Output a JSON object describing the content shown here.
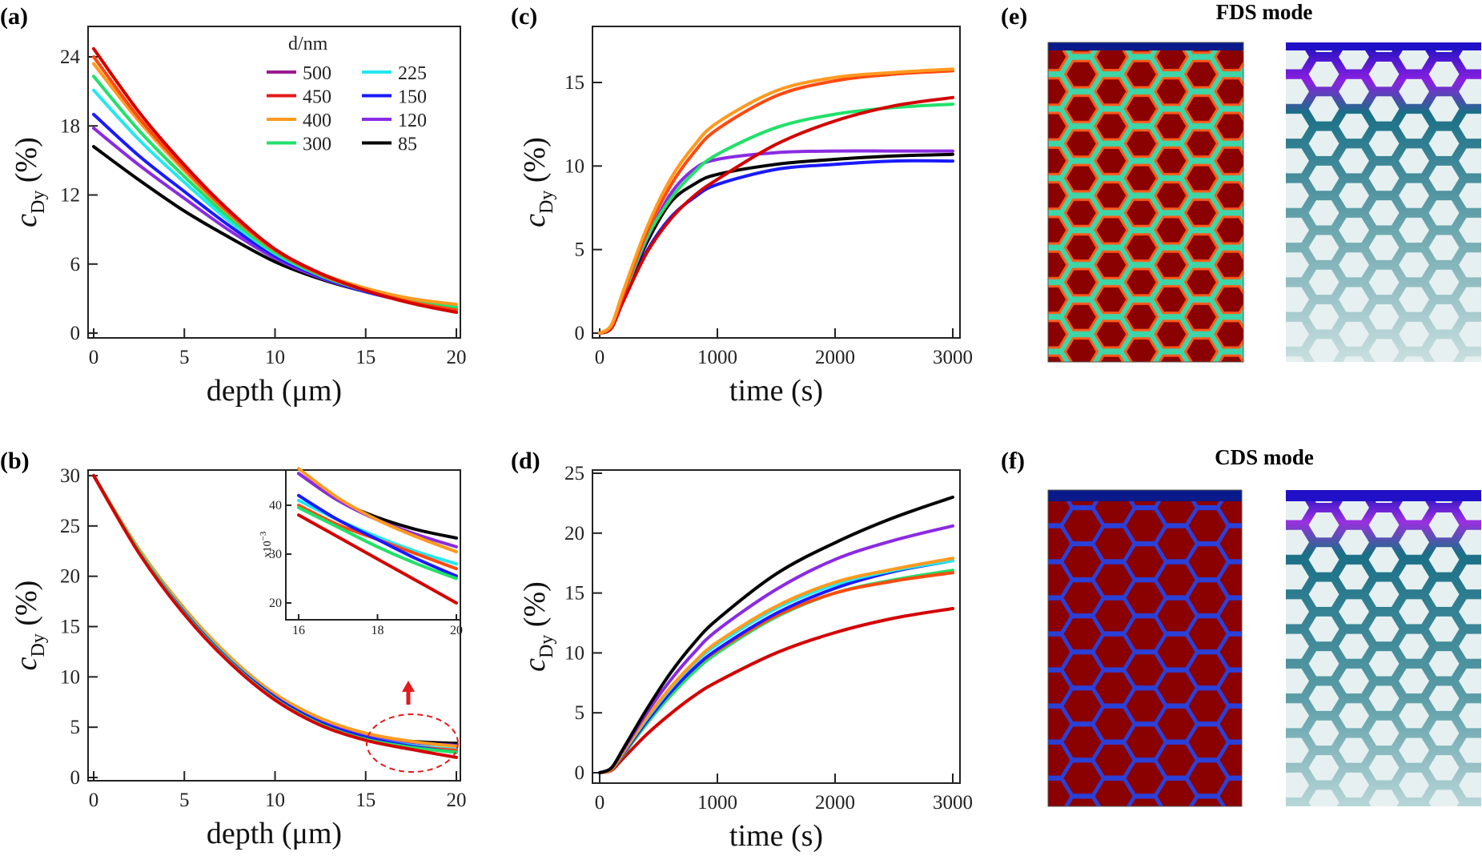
{
  "panel_labels": {
    "a": "(a)",
    "b": "(b)",
    "c": "(c)",
    "d": "(d)",
    "e": "(e)",
    "f": "(f)"
  },
  "panels": {
    "e": {
      "title": "FDS mode"
    },
    "f": {
      "title": "CDS mode"
    }
  },
  "legend": {
    "title": "d/nm",
    "entries": [
      {
        "label": "500",
        "color": "#9b1b8f"
      },
      {
        "label": "450",
        "color": "#e41a1c"
      },
      {
        "label": "400",
        "color": "#ff9a1f"
      },
      {
        "label": "300",
        "color": "#22e06a"
      },
      {
        "label": "225",
        "color": "#22e8f0"
      },
      {
        "label": "150",
        "color": "#1a1aff"
      },
      {
        "label": "120",
        "color": "#8a2be2"
      },
      {
        "label": "85",
        "color": "#000000"
      }
    ]
  },
  "chart_data": [
    {
      "id": "a",
      "type": "line",
      "title": "",
      "xlabel": "depth (μm)",
      "ylabel_main": "c",
      "ylabel_sub": "Dy",
      "ylabel_unit": " (%)",
      "xlim": [
        0,
        20
      ],
      "ylim": [
        0,
        27
      ],
      "xticks": [
        "0",
        "5",
        "10",
        "15",
        "20"
      ],
      "xtick_values": [
        0,
        5,
        10,
        15,
        20
      ],
      "yticks": [
        "0",
        "6",
        "12",
        "18",
        "24"
      ],
      "ytick_values": [
        0,
        6,
        12,
        18,
        24
      ],
      "x": [
        0,
        2.5,
        5,
        7.5,
        10,
        12.5,
        15,
        17.5,
        20
      ],
      "series": [
        {
          "name": "85",
          "color": "#000000",
          "values": [
            16.2,
            13.3,
            10.6,
            8.3,
            6.2,
            4.7,
            3.6,
            2.8,
            2.2
          ]
        },
        {
          "name": "120",
          "color": "#8a2be2",
          "values": [
            17.8,
            14.6,
            11.7,
            8.9,
            6.5,
            4.8,
            3.6,
            2.7,
            2.1
          ]
        },
        {
          "name": "150",
          "color": "#1a1aff",
          "values": [
            19.0,
            15.4,
            12.3,
            9.3,
            6.7,
            4.9,
            3.6,
            2.7,
            2.1
          ]
        },
        {
          "name": "225",
          "color": "#22e8f0",
          "values": [
            21.1,
            16.8,
            13.1,
            9.7,
            6.9,
            5.0,
            3.7,
            2.8,
            2.3
          ]
        },
        {
          "name": "300",
          "color": "#22e06a",
          "values": [
            22.3,
            17.6,
            13.6,
            10.0,
            7.0,
            5.0,
            3.7,
            2.8,
            2.2
          ]
        },
        {
          "name": "400",
          "color": "#ff9a1f",
          "values": [
            23.4,
            18.4,
            14.1,
            10.3,
            7.2,
            5.2,
            3.9,
            3.0,
            2.5
          ]
        },
        {
          "name": "500",
          "color": "#ff4a10",
          "values": [
            24.0,
            18.7,
            14.3,
            10.4,
            7.2,
            5.1,
            3.7,
            2.7,
            2.0
          ]
        },
        {
          "name": "450",
          "color": "#d40000",
          "values": [
            24.7,
            19.2,
            14.6,
            10.6,
            7.3,
            5.2,
            3.7,
            2.6,
            1.8
          ]
        }
      ]
    },
    {
      "id": "b",
      "type": "line",
      "title": "",
      "xlabel": "depth (μm)",
      "ylabel_main": "c",
      "ylabel_sub": "Dy",
      "ylabel_unit": " (%)",
      "xlim": [
        0,
        20
      ],
      "ylim": [
        0,
        30
      ],
      "xticks": [
        "0",
        "5",
        "10",
        "15",
        "20"
      ],
      "xtick_values": [
        0,
        5,
        10,
        15,
        20
      ],
      "yticks": [
        "0",
        "5",
        "10",
        "15",
        "20",
        "25",
        "30"
      ],
      "ytick_values": [
        0,
        5,
        10,
        15,
        20,
        25,
        30
      ],
      "x": [
        0,
        2.5,
        5,
        7.5,
        10,
        12.5,
        15,
        17.5,
        20
      ],
      "series": [
        {
          "name": "85",
          "color": "#000000",
          "values": [
            30,
            22.6,
            16.6,
            11.8,
            8.2,
            5.8,
            4.3,
            3.6,
            3.4
          ]
        },
        {
          "name": "120",
          "color": "#8a2be2",
          "values": [
            30,
            22.6,
            16.6,
            11.8,
            8.2,
            5.8,
            4.3,
            3.5,
            3.2
          ]
        },
        {
          "name": "400",
          "color": "#ff9a1f",
          "values": [
            30,
            22.7,
            16.8,
            12.0,
            8.3,
            5.9,
            4.4,
            3.6,
            3.1
          ]
        },
        {
          "name": "225",
          "color": "#22e8f0",
          "values": [
            30,
            22.5,
            16.5,
            11.7,
            8.0,
            5.5,
            4.0,
            3.2,
            2.8
          ]
        },
        {
          "name": "500",
          "color": "#ff4a10",
          "values": [
            30,
            22.4,
            16.4,
            11.6,
            7.9,
            5.4,
            3.9,
            3.1,
            2.7
          ]
        },
        {
          "name": "150",
          "color": "#1a1aff",
          "values": [
            30,
            22.4,
            16.4,
            11.6,
            8.0,
            5.5,
            4.0,
            3.1,
            2.5
          ]
        },
        {
          "name": "300",
          "color": "#22e06a",
          "values": [
            30,
            22.4,
            16.3,
            11.5,
            7.8,
            5.3,
            3.8,
            3.0,
            2.5
          ]
        },
        {
          "name": "450",
          "color": "#d40000",
          "values": [
            30,
            22.3,
            16.2,
            11.4,
            7.7,
            5.2,
            3.7,
            2.8,
            2.0
          ]
        }
      ],
      "inset": {
        "ylabel": "x10",
        "ylabel_exp": "−3",
        "xlim": [
          15.5,
          20
        ],
        "ylim": [
          16.5,
          47
        ],
        "xticks": [
          "16",
          "18",
          "20"
        ],
        "xtick_values": [
          16,
          18,
          20
        ],
        "yticks": [
          "20",
          "30",
          "40"
        ],
        "ytick_values": [
          20,
          30,
          40
        ],
        "x": [
          16,
          17,
          18,
          19,
          20
        ],
        "series": [
          {
            "name": "85",
            "color": "#000000",
            "values": [
              46.5,
              41,
              37.5,
              35,
              33.3
            ]
          },
          {
            "name": "120",
            "color": "#8a2be2",
            "values": [
              46.5,
              41,
              37,
              34,
              31.5
            ]
          },
          {
            "name": "400",
            "color": "#ff9a1f",
            "values": [
              47.5,
              41.5,
              37,
              33.5,
              30.5
            ]
          },
          {
            "name": "225",
            "color": "#22e8f0",
            "values": [
              41,
              37,
              33.5,
              30.5,
              28
            ]
          },
          {
            "name": "500",
            "color": "#ff4a10",
            "values": [
              40,
              36,
              33,
              30,
              27
            ]
          },
          {
            "name": "150",
            "color": "#1a1aff",
            "values": [
              42,
              37,
              33,
              29,
              25.5
            ]
          },
          {
            "name": "300",
            "color": "#22e06a",
            "values": [
              39.5,
              35.5,
              31.5,
              28,
              25
            ]
          },
          {
            "name": "450",
            "color": "#d40000",
            "values": [
              38,
              33.5,
              29,
              24.5,
              20
            ]
          }
        ]
      }
    },
    {
      "id": "c",
      "type": "line",
      "title": "",
      "xlabel": "time (s)",
      "ylabel_main": "c",
      "ylabel_sub": "Dy",
      "ylabel_unit": " (%)",
      "xlim": [
        0,
        3000
      ],
      "ylim": [
        0,
        18
      ],
      "xticks": [
        "0",
        "1000",
        "2000",
        "3000"
      ],
      "xtick_values": [
        0,
        1000,
        2000,
        3000
      ],
      "yticks": [
        "0",
        "5",
        "10",
        "15"
      ],
      "ytick_values": [
        0,
        5,
        10,
        15
      ],
      "x": [
        0,
        100,
        200,
        400,
        600,
        800,
        1000,
        1500,
        2000,
        2500,
        3000
      ],
      "series": [
        {
          "name": "150",
          "color": "#1a1aff",
          "values": [
            0,
            0.3,
            2.0,
            4.9,
            6.9,
            8.1,
            8.9,
            9.8,
            10.1,
            10.3,
            10.3
          ]
        },
        {
          "name": "85",
          "color": "#000000",
          "values": [
            0,
            0.4,
            2.2,
            5.4,
            7.8,
            8.9,
            9.5,
            10.1,
            10.4,
            10.6,
            10.7
          ]
        },
        {
          "name": "120",
          "color": "#8a2be2",
          "values": [
            0,
            0.4,
            2.2,
            5.6,
            8.3,
            9.8,
            10.4,
            10.8,
            10.9,
            10.9,
            10.9
          ]
        },
        {
          "name": "300",
          "color": "#22e06a",
          "values": [
            0,
            0.4,
            2.2,
            5.7,
            8.0,
            9.6,
            10.7,
            12.3,
            13.1,
            13.5,
            13.7
          ]
        },
        {
          "name": "450",
          "color": "#d40000",
          "values": [
            0,
            0.3,
            1.9,
            4.8,
            6.8,
            8.2,
            9.2,
            11.3,
            12.7,
            13.6,
            14.1
          ]
        },
        {
          "name": "500",
          "color": "#ff4a10",
          "values": [
            0,
            0.4,
            2.3,
            6.0,
            8.8,
            10.8,
            12.2,
            14.2,
            15.1,
            15.5,
            15.7
          ]
        },
        {
          "name": "400",
          "color": "#ff9a1f",
          "values": [
            0,
            0.5,
            2.5,
            6.3,
            9.2,
            11.2,
            12.6,
            14.5,
            15.3,
            15.6,
            15.8
          ]
        }
      ]
    },
    {
      "id": "d",
      "type": "line",
      "title": "",
      "xlabel": "time (s)",
      "ylabel_main": "c",
      "ylabel_sub": "Dy",
      "ylabel_unit": " (%)",
      "xlim": [
        0,
        3000
      ],
      "ylim": [
        0,
        25
      ],
      "xticks": [
        "0",
        "1000",
        "2000",
        "3000"
      ],
      "xtick_values": [
        0,
        1000,
        2000,
        3000
      ],
      "yticks": [
        "0",
        "5",
        "10",
        "15",
        "20",
        "25"
      ],
      "ytick_values": [
        0,
        5,
        10,
        15,
        20,
        25
      ],
      "x": [
        0,
        100,
        200,
        400,
        600,
        800,
        1000,
        1500,
        2000,
        2500,
        3000
      ],
      "series": [
        {
          "name": "450",
          "color": "#d40000",
          "values": [
            0,
            0.2,
            1.2,
            3.2,
            4.9,
            6.4,
            7.6,
            10.0,
            11.7,
            12.9,
            13.7
          ]
        },
        {
          "name": "300",
          "color": "#22e06a",
          "values": [
            0,
            0.3,
            1.5,
            4.1,
            6.4,
            8.4,
            10.0,
            13.0,
            15.0,
            16.1,
            16.9
          ]
        },
        {
          "name": "500",
          "color": "#ff4a10",
          "values": [
            0,
            0.3,
            1.6,
            4.3,
            6.7,
            8.7,
            10.2,
            13.1,
            15.0,
            16.0,
            16.7
          ]
        },
        {
          "name": "150",
          "color": "#1a1aff",
          "values": [
            0,
            0.3,
            1.6,
            4.3,
            6.7,
            8.7,
            10.3,
            13.3,
            15.4,
            16.8,
            17.7
          ]
        },
        {
          "name": "225",
          "color": "#22e8f0",
          "values": [
            0,
            0.3,
            1.7,
            4.5,
            7.0,
            9.1,
            10.7,
            13.7,
            15.7,
            16.9,
            17.7
          ]
        },
        {
          "name": "400",
          "color": "#ff9a1f",
          "values": [
            0,
            0.3,
            1.7,
            4.6,
            7.1,
            9.2,
            10.9,
            13.9,
            15.9,
            17.0,
            17.9
          ]
        },
        {
          "name": "120",
          "color": "#8a2be2",
          "values": [
            0,
            0.4,
            1.9,
            5.0,
            7.7,
            10.0,
            11.9,
            15.3,
            17.8,
            19.4,
            20.6
          ]
        },
        {
          "name": "85",
          "color": "#000000",
          "values": [
            0,
            0.4,
            2.0,
            5.3,
            8.3,
            10.8,
            12.8,
            16.6,
            19.2,
            21.3,
            23.0
          ]
        }
      ]
    }
  ]
}
